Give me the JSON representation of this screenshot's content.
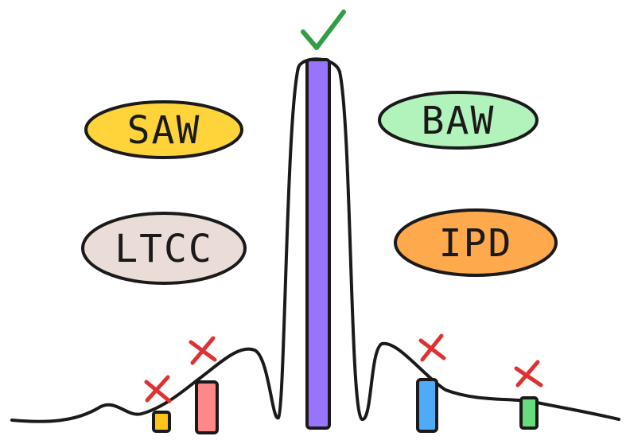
{
  "colors": {
    "outline": "#1a1a1a",
    "saw_fill": "#ffd43b",
    "baw_fill": "#b2f2bb",
    "ltcc_fill": "#eaddd7",
    "ipd_fill": "#ffa94d",
    "main_bar": "#9775fa",
    "bar_yellow": "#fcc419",
    "bar_pink": "#ff8787",
    "bar_blue": "#4dabf7",
    "bar_green": "#69db7c",
    "check": "#2f9e44",
    "cross": "#e03131"
  },
  "labels": {
    "saw": "SAW",
    "baw": "BAW",
    "ltcc": "LTCC",
    "ipd": "IPD"
  },
  "marks": {
    "main": "check-icon",
    "others": "cross-icon"
  }
}
